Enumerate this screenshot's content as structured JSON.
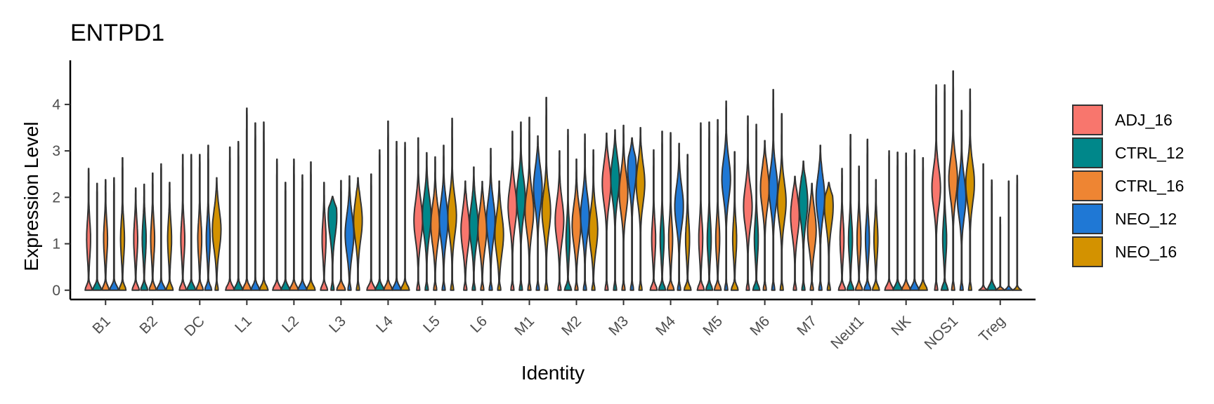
{
  "chart_data": {
    "type": "violin",
    "title": "ENTPD1",
    "xlabel": "Identity",
    "ylabel": "Expression Level",
    "ylim": [
      -0.2,
      4.95
    ],
    "yticks": [
      "0",
      "1",
      "2",
      "3",
      "4"
    ],
    "categories": [
      "B1",
      "B2",
      "DC",
      "L1",
      "L2",
      "L3",
      "L4",
      "L5",
      "L6",
      "M1",
      "M2",
      "M3",
      "M4",
      "M5",
      "M6",
      "M7",
      "Neut1",
      "NK",
      "NOS1",
      "Treg"
    ],
    "legend_position": "right",
    "grid": false,
    "series": [
      {
        "name": "ADJ_16",
        "color": "#F8766D",
        "profiles": [
          {
            "max": 2.62,
            "shape": "mixed"
          },
          {
            "max": 2.2,
            "shape": "mixed"
          },
          {
            "max": 2.92,
            "shape": "mixed"
          },
          {
            "max": 3.08,
            "shape": "zero"
          },
          {
            "max": 2.82,
            "shape": "zero"
          },
          {
            "max": 2.32,
            "shape": "mixed"
          },
          {
            "max": 2.5,
            "shape": "zero"
          },
          {
            "max": 3.28,
            "shape": "high",
            "peak": 1.5
          },
          {
            "max": 2.35,
            "shape": "high",
            "peak": 1.3
          },
          {
            "max": 3.42,
            "shape": "high",
            "peak": 1.8
          },
          {
            "max": 3.0,
            "shape": "high",
            "peak": 1.5
          },
          {
            "max": 3.38,
            "shape": "high",
            "peak": 2.3
          },
          {
            "max": 3.02,
            "shape": "mixed"
          },
          {
            "max": 3.6,
            "shape": "mixed"
          },
          {
            "max": 3.75,
            "shape": "high",
            "peak": 1.8
          },
          {
            "max": 2.45,
            "shape": "high",
            "peak": 1.6
          },
          {
            "max": 2.62,
            "shape": "mixed"
          },
          {
            "max": 3.0,
            "shape": "zero"
          },
          {
            "max": 4.42,
            "shape": "high",
            "peak": 2.2
          },
          {
            "max": 2.72,
            "shape": "flat"
          }
        ]
      },
      {
        "name": "CTRL_12",
        "color": "#00878A",
        "profiles": [
          {
            "max": 2.3,
            "shape": "zero"
          },
          {
            "max": 2.28,
            "shape": "mixed"
          },
          {
            "max": 2.92,
            "shape": "zero"
          },
          {
            "max": 3.2,
            "shape": "zero"
          },
          {
            "max": 2.32,
            "shape": "zero"
          },
          {
            "max": 2.02,
            "shape": "high",
            "peak": 1.6
          },
          {
            "max": 3.02,
            "shape": "zero"
          },
          {
            "max": 2.96,
            "shape": "high",
            "peak": 1.6
          },
          {
            "max": 2.65,
            "shape": "high",
            "peak": 1.4
          },
          {
            "max": 3.62,
            "shape": "high",
            "peak": 2.0
          },
          {
            "max": 3.46,
            "shape": "mixed"
          },
          {
            "max": 3.45,
            "shape": "high",
            "peak": 2.4
          },
          {
            "max": 3.42,
            "shape": "mixed"
          },
          {
            "max": 3.62,
            "shape": "mixed"
          },
          {
            "max": 3.57,
            "shape": "mixed"
          },
          {
            "max": 2.78,
            "shape": "high",
            "peak": 1.9
          },
          {
            "max": 3.35,
            "shape": "mixed"
          },
          {
            "max": 2.97,
            "shape": "zero"
          },
          {
            "max": 4.42,
            "shape": "mixed"
          },
          {
            "max": 2.37,
            "shape": "zero"
          }
        ]
      },
      {
        "name": "CTRL_16",
        "color": "#EE8533",
        "profiles": [
          {
            "max": 2.38,
            "shape": "mixed"
          },
          {
            "max": 2.52,
            "shape": "mixed"
          },
          {
            "max": 2.92,
            "shape": "mixed"
          },
          {
            "max": 3.92,
            "shape": "zero"
          },
          {
            "max": 2.82,
            "shape": "zero"
          },
          {
            "max": 2.36,
            "shape": "zero"
          },
          {
            "max": 3.64,
            "shape": "zero"
          },
          {
            "max": 2.87,
            "shape": "high",
            "peak": 1.4
          },
          {
            "max": 2.34,
            "shape": "high",
            "peak": 1.3
          },
          {
            "max": 3.72,
            "shape": "high",
            "peak": 1.7
          },
          {
            "max": 2.82,
            "shape": "high",
            "peak": 1.4
          },
          {
            "max": 3.55,
            "shape": "high",
            "peak": 2.1
          },
          {
            "max": 3.39,
            "shape": "mixed"
          },
          {
            "max": 3.67,
            "shape": "mixed"
          },
          {
            "max": 3.22,
            "shape": "high",
            "peak": 2.2
          },
          {
            "max": 2.3,
            "shape": "high",
            "peak": 1.3
          },
          {
            "max": 2.67,
            "shape": "mixed"
          },
          {
            "max": 2.95,
            "shape": "zero"
          },
          {
            "max": 4.72,
            "shape": "high",
            "peak": 2.4
          },
          {
            "max": 1.57,
            "shape": "flat"
          }
        ]
      },
      {
        "name": "NEO_12",
        "color": "#1F78D5",
        "profiles": [
          {
            "max": 2.42,
            "shape": "zero"
          },
          {
            "max": 2.72,
            "shape": "zero"
          },
          {
            "max": 3.12,
            "shape": "mixed"
          },
          {
            "max": 3.6,
            "shape": "zero"
          },
          {
            "max": 2.48,
            "shape": "zero"
          },
          {
            "max": 2.46,
            "shape": "high",
            "peak": 1.2
          },
          {
            "max": 3.2,
            "shape": "zero"
          },
          {
            "max": 3.12,
            "shape": "high",
            "peak": 1.5
          },
          {
            "max": 3.05,
            "shape": "high",
            "peak": 1.5
          },
          {
            "max": 3.32,
            "shape": "high",
            "peak": 2.2
          },
          {
            "max": 3.36,
            "shape": "high",
            "peak": 1.6
          },
          {
            "max": 3.28,
            "shape": "high",
            "peak": 2.6
          },
          {
            "max": 3.16,
            "shape": "high",
            "peak": 1.8
          },
          {
            "max": 4.07,
            "shape": "high",
            "peak": 2.4
          },
          {
            "max": 4.32,
            "shape": "high",
            "peak": 2.2
          },
          {
            "max": 3.12,
            "shape": "high",
            "peak": 2.0
          },
          {
            "max": 3.25,
            "shape": "mixed"
          },
          {
            "max": 3.02,
            "shape": "zero"
          },
          {
            "max": 3.87,
            "shape": "high",
            "peak": 2.0
          },
          {
            "max": 2.35,
            "shape": "flat"
          }
        ]
      },
      {
        "name": "NEO_16",
        "color": "#D39200",
        "profiles": [
          {
            "max": 2.85,
            "shape": "mixed"
          },
          {
            "max": 2.32,
            "shape": "mixed"
          },
          {
            "max": 2.42,
            "shape": "high",
            "peak": 1.3
          },
          {
            "max": 3.62,
            "shape": "zero"
          },
          {
            "max": 2.76,
            "shape": "zero"
          },
          {
            "max": 2.42,
            "shape": "high",
            "peak": 1.5
          },
          {
            "max": 3.18,
            "shape": "zero"
          },
          {
            "max": 3.7,
            "shape": "high",
            "peak": 1.6
          },
          {
            "max": 2.35,
            "shape": "high",
            "peak": 1.2
          },
          {
            "max": 4.15,
            "shape": "high",
            "peak": 1.7
          },
          {
            "max": 3.02,
            "shape": "high",
            "peak": 1.3
          },
          {
            "max": 3.5,
            "shape": "high",
            "peak": 2.3
          },
          {
            "max": 2.92,
            "shape": "mixed"
          },
          {
            "max": 2.98,
            "shape": "mixed"
          },
          {
            "max": 3.8,
            "shape": "high",
            "peak": 1.9
          },
          {
            "max": 2.32,
            "shape": "high",
            "peak": 1.8
          },
          {
            "max": 2.38,
            "shape": "mixed"
          },
          {
            "max": 2.85,
            "shape": "zero"
          },
          {
            "max": 4.33,
            "shape": "high",
            "peak": 2.3
          },
          {
            "max": 2.47,
            "shape": "flat"
          }
        ]
      }
    ]
  }
}
